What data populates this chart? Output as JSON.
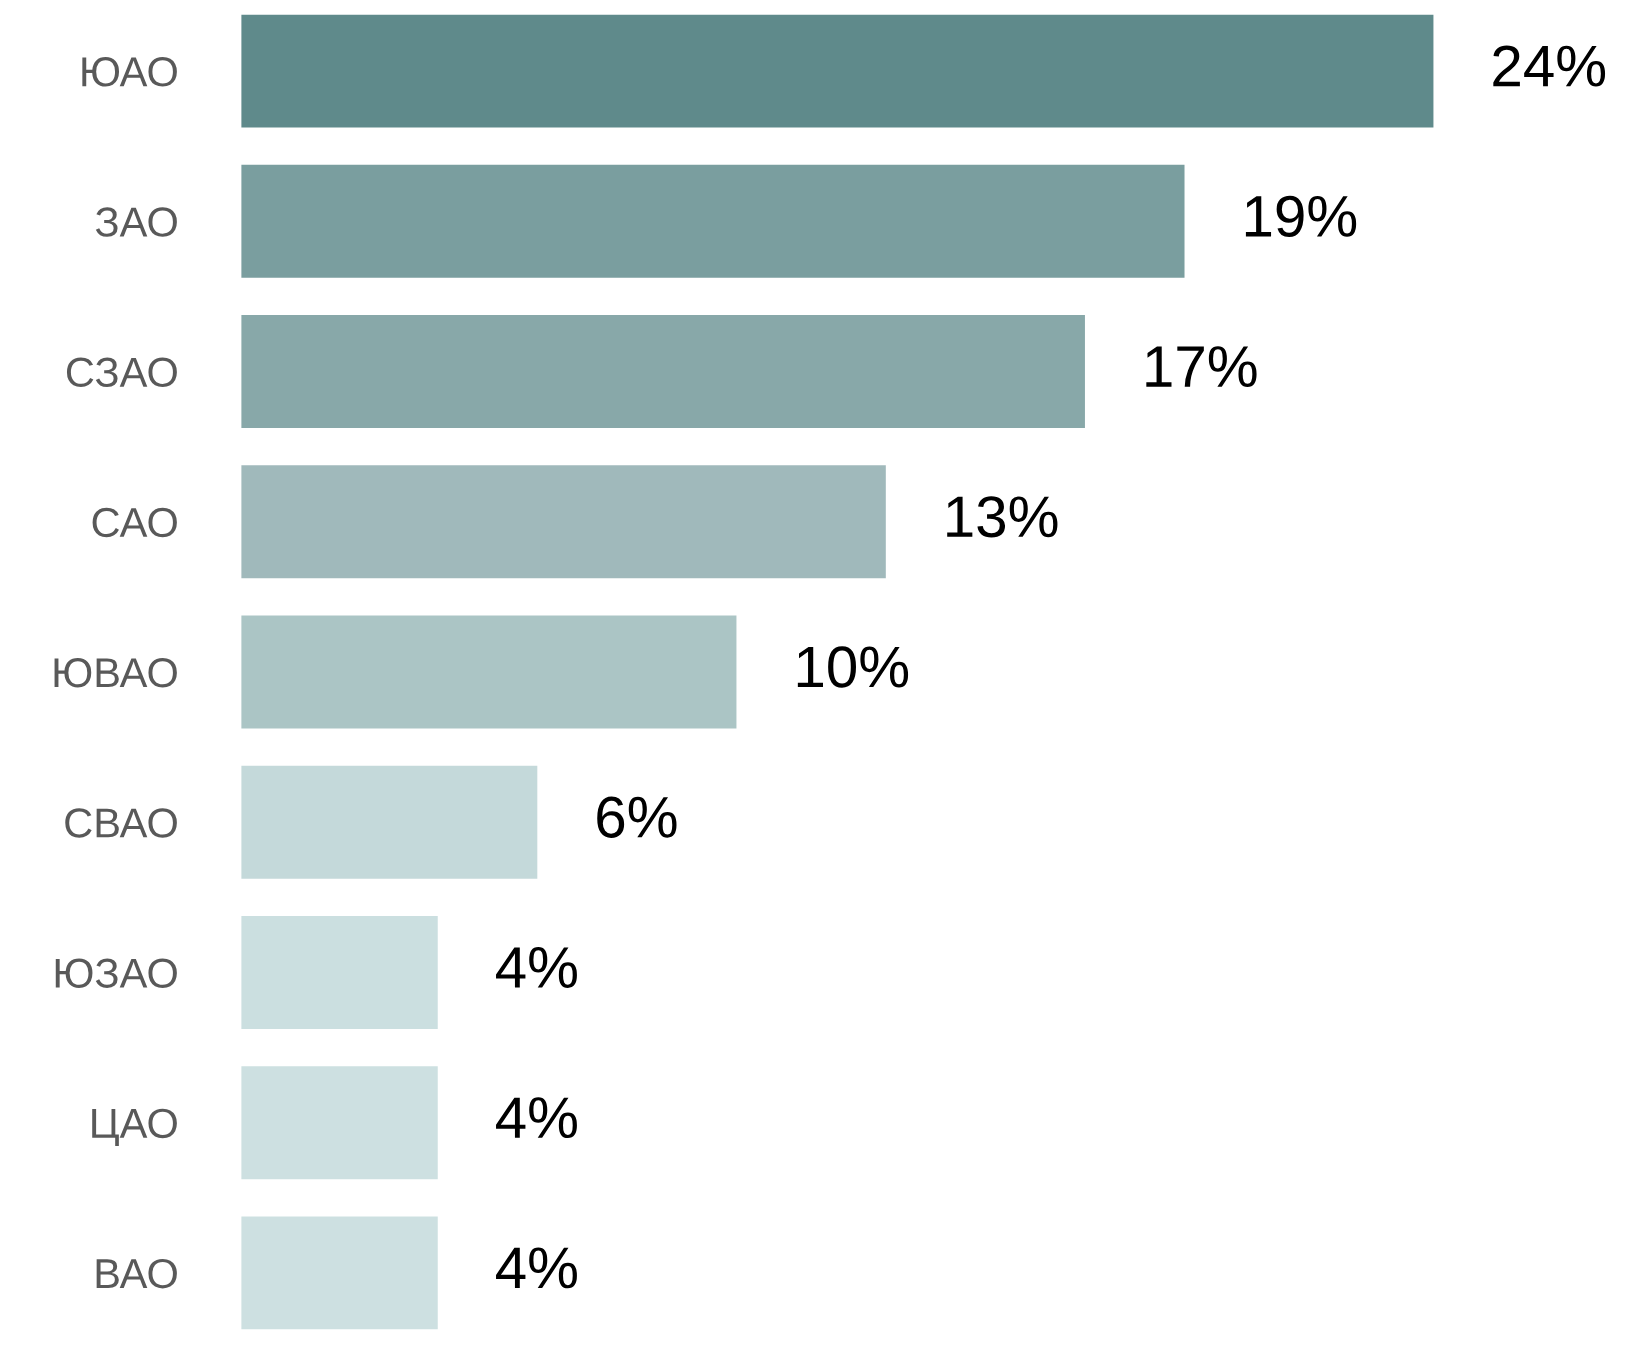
{
  "chart_data": {
    "type": "bar",
    "orientation": "horizontal",
    "categories": [
      "ЮАО",
      "ЗАО",
      "СЗАО",
      "САО",
      "ЮВАО",
      "СВАО",
      "ЮЗАО",
      "ЦАО",
      "ВАО"
    ],
    "values": [
      24,
      19,
      17,
      13,
      10,
      6,
      4,
      4,
      4
    ],
    "value_labels": [
      "24%",
      "19%",
      "17%",
      "13%",
      "10%",
      "6%",
      "4%",
      "4%",
      "4%"
    ],
    "colors": [
      "#5f8a8b",
      "#7a9e9f",
      "#88a8a9",
      "#a0b9bb",
      "#abc5c5",
      "#c4d9da",
      "#cbdfe0",
      "#cde0e1",
      "#cde0e1"
    ],
    "grid": false,
    "legend": false
  }
}
